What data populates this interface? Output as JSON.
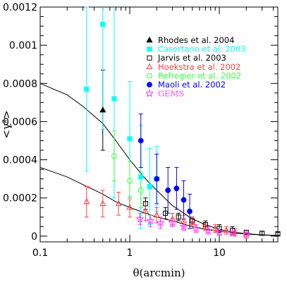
{
  "chart_data": {
    "type": "scatter",
    "title": "",
    "xlabel": "θ(arcmin)",
    "ylabel": "<γ²>",
    "x_scale": "log",
    "xlim": [
      0.1,
      45
    ],
    "ylim": [
      -3e-05,
      0.0012
    ],
    "x_ticks": [
      {
        "value": 0.1,
        "label": "0.1"
      },
      {
        "value": 1,
        "label": "1"
      },
      {
        "value": 10,
        "label": "10"
      }
    ],
    "y_ticks": [
      {
        "value": 0,
        "label": "0"
      },
      {
        "value": 0.0002,
        "label": "0.0002"
      },
      {
        "value": 0.0004,
        "label": "0.0004"
      },
      {
        "value": 0.0006,
        "label": "0.0006"
      },
      {
        "value": 0.0008,
        "label": "0.0008"
      },
      {
        "value": 0.001,
        "label": "0.001"
      },
      {
        "value": 0.0012,
        "label": "0.0012"
      }
    ],
    "grid": false,
    "legend_position": "top-right",
    "series": [
      {
        "name": "Rhodes et al. 2004",
        "color": "#000000",
        "marker": "triangle-filled",
        "points": [
          {
            "x": 0.5,
            "y": 0.00066,
            "err": 0.00021
          }
        ]
      },
      {
        "name": "Casertano et al. 2003",
        "color": "#00ffff",
        "marker": "square-filled",
        "points": [
          {
            "x": 0.33,
            "y": 0.00077,
            "err": 0.00043
          },
          {
            "x": 0.5,
            "y": 0.00111,
            "err": 0.00055
          },
          {
            "x": 0.67,
            "y": 0.00072,
            "err": 0.00052
          },
          {
            "x": 1.0,
            "y": 0.00051,
            "err": 0.0003
          },
          {
            "x": 1.33,
            "y": 0.00031,
            "err": 0.00027
          },
          {
            "x": 1.67,
            "y": 0.00026,
            "err": 0.0002
          },
          {
            "x": 2.0,
            "y": 0.0003,
            "err": 0.00017
          }
        ]
      },
      {
        "name": "Jarvis et al. 2003",
        "color": "#000000",
        "marker": "square-open",
        "points": [
          {
            "x": 1.5,
            "y": 0.00017,
            "err": 3e-05
          },
          {
            "x": 2.5,
            "y": 0.00012,
            "err": 3e-05
          },
          {
            "x": 3.5,
            "y": 0.0001,
            "err": 2e-05
          },
          {
            "x": 5.0,
            "y": 8e-05,
            "err": 2e-05
          },
          {
            "x": 7.0,
            "y": 6e-05,
            "err": 2e-05
          },
          {
            "x": 10.0,
            "y": 4e-05,
            "err": 2e-05
          },
          {
            "x": 14.0,
            "y": 3e-05,
            "err": 2e-05
          },
          {
            "x": 20.0,
            "y": 2e-05,
            "err": 1e-05
          },
          {
            "x": 30.0,
            "y": 1.5e-05,
            "err": 1e-05
          },
          {
            "x": 45.0,
            "y": 1.2e-05,
            "err": 8e-06
          }
        ]
      },
      {
        "name": "Hoekstra et al. 2002",
        "color": "#ff4040",
        "marker": "triangle-open",
        "points": [
          {
            "x": 0.33,
            "y": 0.00018,
            "err": 8e-05
          },
          {
            "x": 0.5,
            "y": 0.00017,
            "err": 7e-05
          },
          {
            "x": 0.75,
            "y": 0.00017,
            "err": 6e-05
          },
          {
            "x": 1.0,
            "y": 0.00015,
            "err": 5e-05
          },
          {
            "x": 1.5,
            "y": 0.00013,
            "err": 5e-05
          },
          {
            "x": 2.0,
            "y": 0.00011,
            "err": 4e-05
          },
          {
            "x": 3.0,
            "y": 9e-05,
            "err": 3e-05
          },
          {
            "x": 4.0,
            "y": 8e-05,
            "err": 3e-05
          },
          {
            "x": 5.0,
            "y": 7e-05,
            "err": 3e-05
          },
          {
            "x": 7.0,
            "y": 5e-05,
            "err": 2e-05
          },
          {
            "x": 9.0,
            "y": 4e-05,
            "err": 2e-05
          },
          {
            "x": 12.0,
            "y": 3e-05,
            "err": 2e-05
          },
          {
            "x": 15.0,
            "y": 2e-05,
            "err": 2e-05
          },
          {
            "x": 20.0,
            "y": 1e-05,
            "err": 2e-05
          }
        ]
      },
      {
        "name": "Refregier et al. 2002",
        "color": "#40ff40",
        "marker": "circle-open",
        "points": [
          {
            "x": 0.67,
            "y": 0.00042,
            "err": 0.00013
          },
          {
            "x": 1.0,
            "y": 0.00029,
            "err": 0.0001
          },
          {
            "x": 1.33,
            "y": 0.00024,
            "err": 9e-05
          }
        ]
      },
      {
        "name": "Maoli et al. 2002",
        "color": "#0000ff",
        "marker": "circle-filled",
        "points": [
          {
            "x": 1.33,
            "y": 0.0005,
            "err": 0.00014
          },
          {
            "x": 2.0,
            "y": 0.0003,
            "err": 0.00013
          },
          {
            "x": 2.67,
            "y": 0.00024,
            "err": 0.00012
          },
          {
            "x": 3.33,
            "y": 0.00025,
            "err": 0.00011
          },
          {
            "x": 4.0,
            "y": 0.00019,
            "err": 0.0001
          },
          {
            "x": 4.67,
            "y": 0.00013,
            "err": 9e-05
          }
        ]
      },
      {
        "name": "GEMS",
        "color": "#ff40ff",
        "marker": "star-open",
        "points": [
          {
            "x": 1.3,
            "y": 9e-05,
            "err": 3e-05
          },
          {
            "x": 1.7,
            "y": 8e-05,
            "err": 3e-05
          },
          {
            "x": 2.2,
            "y": 7e-05,
            "err": 3e-05
          },
          {
            "x": 3.0,
            "y": 7e-05,
            "err": 2e-05
          },
          {
            "x": 4.0,
            "y": 5e-05,
            "err": 2e-05
          },
          {
            "x": 5.5,
            "y": 4e-05,
            "err": 2e-05
          },
          {
            "x": 7.5,
            "y": 3e-05,
            "err": 2e-05
          },
          {
            "x": 10.0,
            "y": 2e-05,
            "err": 1e-05
          },
          {
            "x": 14.0,
            "y": 1.5e-05,
            "err": 1e-05
          },
          {
            "x": 20.0,
            "y": 1e-05,
            "err": 1e-05
          }
        ]
      }
    ],
    "model_curves": [
      {
        "color": "#000000",
        "points": [
          [
            0.1,
            0.0008
          ],
          [
            0.2,
            0.00074
          ],
          [
            0.3,
            0.00068
          ],
          [
            0.5,
            0.00059
          ],
          [
            0.7,
            0.0005
          ],
          [
            1.0,
            0.0004
          ],
          [
            1.5,
            0.0003
          ],
          [
            2.0,
            0.00024
          ],
          [
            3.0,
            0.00016
          ],
          [
            5.0,
            9e-05
          ],
          [
            7.0,
            6e-05
          ],
          [
            10.0,
            3.5e-05
          ],
          [
            15.0,
            2e-05
          ],
          [
            20.0,
            1.3e-05
          ],
          [
            30.0,
            7e-06
          ],
          [
            45.0,
            4e-06
          ]
        ]
      },
      {
        "color": "#000000",
        "points": [
          [
            0.1,
            0.00036
          ],
          [
            0.2,
            0.00031
          ],
          [
            0.3,
            0.00027
          ],
          [
            0.5,
            0.00022
          ],
          [
            0.7,
            0.00018
          ],
          [
            1.0,
            0.00015
          ],
          [
            1.5,
            0.00012
          ],
          [
            2.0,
            0.0001
          ],
          [
            3.0,
            8e-05
          ],
          [
            5.0,
            5e-05
          ],
          [
            7.0,
            3.5e-05
          ],
          [
            10.0,
            2.5e-05
          ],
          [
            15.0,
            1.6e-05
          ],
          [
            20.0,
            1.1e-05
          ],
          [
            30.0,
            6e-06
          ],
          [
            45.0,
            3e-06
          ]
        ]
      }
    ]
  }
}
